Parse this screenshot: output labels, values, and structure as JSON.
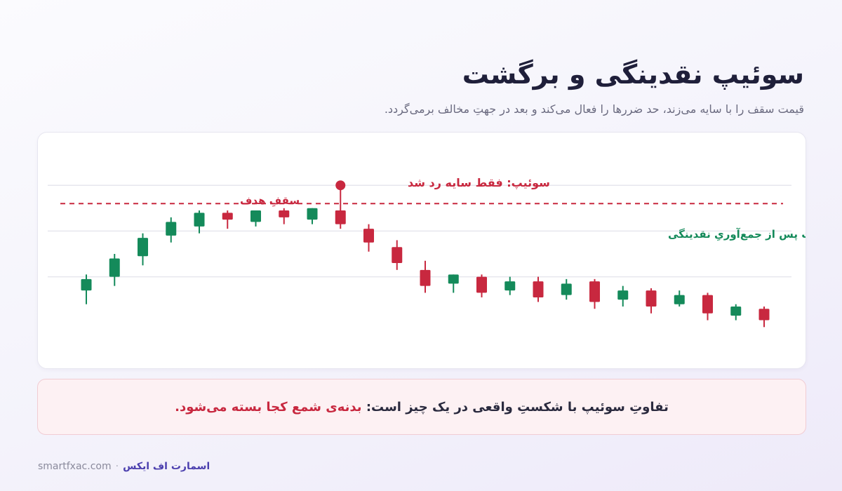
{
  "header": {
    "title": "سوئیپ نقدینگی و برگشت",
    "subtitle": "قیمت سقف را با سایه می‌زند، حد ضررها را فعال می‌کند و بعد در جهتِ مخالف برمی‌گردد."
  },
  "colors": {
    "bull": "#148a5a",
    "bear": "#c8283f",
    "grid": "#e6e6ee"
  },
  "chart_data": {
    "type": "candlestick",
    "ylim": [
      0,
      100
    ],
    "grid": true,
    "level": {
      "value": 72,
      "label": "سقفِ هدف"
    },
    "annotations": {
      "sweep_label": "سوئیپ: فقط سایه رد شد",
      "sweep_candle_index": 9,
      "reversal_label": "برگشت پس از جمع‌آوریِ نقدینگی"
    },
    "candles": [
      {
        "o": 34,
        "h": 41,
        "l": 28,
        "c": 39
      },
      {
        "o": 40,
        "h": 50,
        "l": 36,
        "c": 48
      },
      {
        "o": 49,
        "h": 59,
        "l": 45,
        "c": 57
      },
      {
        "o": 58,
        "h": 66,
        "l": 55,
        "c": 64
      },
      {
        "o": 62,
        "h": 69,
        "l": 59,
        "c": 68
      },
      {
        "o": 68,
        "h": 69,
        "l": 61,
        "c": 65
      },
      {
        "o": 64,
        "h": 69,
        "l": 62,
        "c": 69
      },
      {
        "o": 69,
        "h": 70,
        "l": 63,
        "c": 66
      },
      {
        "o": 65,
        "h": 70,
        "l": 63,
        "c": 70
      },
      {
        "o": 69,
        "h": 80,
        "l": 61,
        "c": 63
      },
      {
        "o": 61,
        "h": 63,
        "l": 51,
        "c": 55
      },
      {
        "o": 53,
        "h": 56,
        "l": 43,
        "c": 46
      },
      {
        "o": 43,
        "h": 47,
        "l": 33,
        "c": 36
      },
      {
        "o": 37,
        "h": 41,
        "l": 33,
        "c": 41
      },
      {
        "o": 40,
        "h": 41,
        "l": 31,
        "c": 33
      },
      {
        "o": 34,
        "h": 40,
        "l": 32,
        "c": 38
      },
      {
        "o": 38,
        "h": 40,
        "l": 29,
        "c": 31
      },
      {
        "o": 32,
        "h": 39,
        "l": 30,
        "c": 37
      },
      {
        "o": 38,
        "h": 39,
        "l": 26,
        "c": 29
      },
      {
        "o": 30,
        "h": 36,
        "l": 27,
        "c": 34
      },
      {
        "o": 34,
        "h": 35,
        "l": 24,
        "c": 27
      },
      {
        "o": 28,
        "h": 34,
        "l": 27,
        "c": 32
      },
      {
        "o": 32,
        "h": 33,
        "l": 21,
        "c": 24
      },
      {
        "o": 23,
        "h": 28,
        "l": 21,
        "c": 27
      },
      {
        "o": 26,
        "h": 27,
        "l": 18,
        "c": 21
      }
    ]
  },
  "note": {
    "prefix": "تفاوتِ سوئیپ با شکستِ واقعی در یک چیز است: ",
    "highlight": "بدنه‌ی شمع کجا بسته می‌شود."
  },
  "footer": {
    "domain": "smartfxac.com",
    "separator": "·",
    "brand": "اسمارت اف ایکس"
  }
}
